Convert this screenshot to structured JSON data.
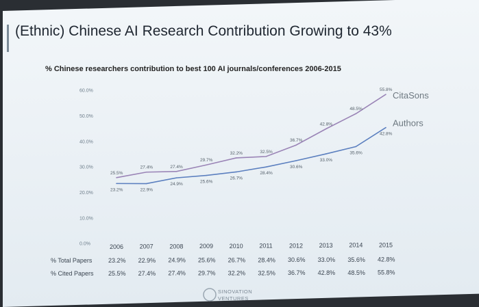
{
  "slide": {
    "title": "(Ethnic) Chinese AI Research Contribution Growing to 43%",
    "subtitle": "% Chinese researchers contribution to best 100 AI journals/conferences 2006-2015",
    "logo_line1": "SINOVATION",
    "logo_line2": "VENTURES"
  },
  "chart_data": {
    "type": "line",
    "title": "(Ethnic) Chinese AI Research Contribution Growing to 43%",
    "subtitle": "% Chinese researchers contribution to best 100 AI journals/conferences 2006-2015",
    "x": [
      "2006",
      "2007",
      "2008",
      "2009",
      "2010",
      "2011",
      "2012",
      "2013",
      "2014",
      "2015"
    ],
    "ylim": [
      0,
      60
    ],
    "yticks": [
      "0.0%",
      "10.0%",
      "20.0%",
      "30.0%",
      "40.0%",
      "50.0%",
      "60.0%"
    ],
    "series": [
      {
        "name": "CitaSons",
        "color": "#9a84b6",
        "values": [
          25.5,
          27.4,
          27.4,
          29.7,
          32.2,
          32.5,
          36.7,
          42.8,
          48.5,
          55.8
        ],
        "labels": [
          "25.5%",
          "27.4%",
          "27.4%",
          "29.7%",
          "32.2%",
          "32.5%",
          "36.7%",
          "42.8%",
          "48.5%",
          "55.8%"
        ]
      },
      {
        "name": "Authors",
        "color": "#5b7fbf",
        "values": [
          23.2,
          22.9,
          24.9,
          25.6,
          26.7,
          28.4,
          30.6,
          33.0,
          35.6,
          42.8
        ],
        "labels": [
          "23.2%",
          "22.9%",
          "24.9%",
          "25.6%",
          "26.7%",
          "28.4%",
          "30.6%",
          "33.0%",
          "35.6%",
          "42.8%"
        ]
      }
    ],
    "table": [
      {
        "label": "% Total Papers",
        "cells": [
          "23.2%",
          "22.9%",
          "24.9%",
          "25.6%",
          "26.7%",
          "28.4%",
          "30.6%",
          "33.0%",
          "35.6%",
          "42.8%"
        ]
      },
      {
        "label": "% Cited Papers",
        "cells": [
          "25.5%",
          "27.4%",
          "27.4%",
          "29.7%",
          "32.2%",
          "32.5%",
          "36.7%",
          "42.8%",
          "48.5%",
          "55.8%"
        ]
      }
    ],
    "grid": false,
    "legend": "inline-right"
  }
}
